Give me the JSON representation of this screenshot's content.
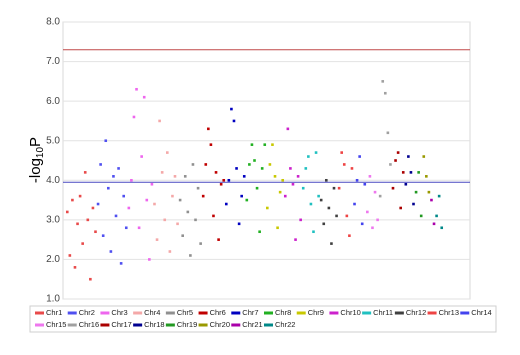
{
  "chart_data": {
    "type": "scatter",
    "ylabel": {
      "main": "-log",
      "sub": "10",
      "end": "P"
    },
    "ylim": [
      1,
      8
    ],
    "yticks": [
      {
        "value": 1,
        "label": "1.0"
      },
      {
        "value": 2,
        "label": "2.0"
      },
      {
        "value": 3,
        "label": "3.0"
      },
      {
        "value": 4,
        "label": "4.0"
      },
      {
        "value": 5,
        "label": "5.0"
      },
      {
        "value": 6,
        "label": "6.0"
      },
      {
        "value": 7,
        "label": "7.0"
      },
      {
        "value": 8,
        "label": "8.0"
      }
    ],
    "grid": true,
    "legend": "bottom",
    "hlines": [
      {
        "value": 7.3,
        "color": "#c04848"
      },
      {
        "value": 3.95,
        "color": "#4848c0"
      }
    ],
    "series": [
      {
        "name": "Chr1",
        "color": "#e84a4a",
        "values": [
          3.2,
          2.1,
          3.5,
          1.8,
          2.9,
          3.6,
          2.4,
          4.2,
          3.0,
          1.5,
          3.3,
          2.7
        ]
      },
      {
        "name": "Chr2",
        "color": "#5050f0",
        "values": [
          3.4,
          4.4,
          2.6,
          5.0,
          3.8,
          2.2,
          4.1,
          3.1,
          4.3,
          1.9,
          3.6,
          2.8
        ]
      },
      {
        "name": "Chr3",
        "color": "#ee66ee",
        "values": [
          3.3,
          4.0,
          5.6,
          6.3,
          2.8,
          4.6,
          6.1,
          3.5,
          2.0,
          3.9
        ]
      },
      {
        "name": "Chr4",
        "color": "#f4a8a8",
        "values": [
          3.4,
          2.5,
          5.5,
          4.2,
          3.0,
          4.7,
          2.2,
          3.6,
          4.1,
          2.9
        ]
      },
      {
        "name": "Chr5",
        "color": "#909090",
        "values": [
          3.5,
          2.6,
          4.1,
          3.2,
          2.1,
          4.4,
          3.0,
          3.8,
          2.4
        ]
      },
      {
        "name": "Chr6",
        "color": "#c00000",
        "values": [
          3.6,
          4.4,
          5.3,
          4.9,
          3.1,
          4.2,
          2.5,
          3.9,
          4.0
        ]
      },
      {
        "name": "Chr7",
        "color": "#0000c0",
        "values": [
          3.4,
          4.0,
          5.8,
          5.5,
          4.3,
          2.9,
          3.6,
          4.1
        ]
      },
      {
        "name": "Chr8",
        "color": "#22b022",
        "values": [
          3.5,
          4.4,
          4.9,
          4.5,
          3.8,
          2.7,
          4.3,
          4.9
        ]
      },
      {
        "name": "Chr9",
        "color": "#c8c800",
        "values": [
          3.3,
          4.4,
          4.9,
          4.1,
          2.8,
          3.7,
          4.0
        ]
      },
      {
        "name": "Chr10",
        "color": "#cc22cc",
        "values": [
          3.6,
          5.3,
          4.3,
          3.9,
          2.5,
          4.1,
          3.0
        ]
      },
      {
        "name": "Chr11",
        "color": "#20c0c0",
        "values": [
          3.8,
          4.3,
          4.6,
          3.4,
          2.7,
          4.7,
          3.6
        ]
      },
      {
        "name": "Chr12",
        "color": "#404040",
        "values": [
          3.5,
          2.9,
          4.0,
          3.3,
          2.4,
          3.8,
          3.1
        ]
      },
      {
        "name": "Chr13",
        "color": "#ee4444",
        "values": [
          3.8,
          4.7,
          4.4,
          3.1,
          2.6,
          4.3
        ]
      },
      {
        "name": "Chr14",
        "color": "#4444ee",
        "values": [
          3.4,
          4.0,
          4.6,
          2.9,
          3.9
        ]
      },
      {
        "name": "Chr15",
        "color": "#ee77ee",
        "values": [
          3.2,
          4.1,
          2.8,
          3.7,
          3.0
        ]
      },
      {
        "name": "Chr16",
        "color": "#a0a0a0",
        "values": [
          3.6,
          6.5,
          6.2,
          5.2,
          4.4
        ]
      },
      {
        "name": "Chr17",
        "color": "#aa0000",
        "values": [
          3.8,
          4.5,
          4.7,
          3.3,
          4.2
        ]
      },
      {
        "name": "Chr18",
        "color": "#000090",
        "values": [
          3.9,
          4.6,
          4.2,
          3.4
        ]
      },
      {
        "name": "Chr19",
        "color": "#229922",
        "values": [
          3.7,
          4.2,
          3.1
        ]
      },
      {
        "name": "Chr20",
        "color": "#999900",
        "values": [
          4.6,
          4.1,
          3.7
        ]
      },
      {
        "name": "Chr21",
        "color": "#aa00aa",
        "values": [
          3.5,
          2.9
        ]
      },
      {
        "name": "Chr22",
        "color": "#008888",
        "values": [
          3.1,
          3.6,
          2.8
        ]
      }
    ]
  }
}
